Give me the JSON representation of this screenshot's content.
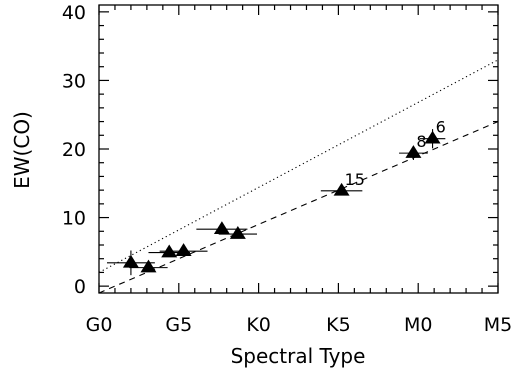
{
  "chart_data": {
    "type": "scatter",
    "title": "",
    "xlabel": "Spectral Type",
    "ylabel": "EW(CO)",
    "xlim": [
      0,
      25
    ],
    "ylim": [
      -1,
      41
    ],
    "x_ticks": [
      {
        "value": 0,
        "label": "G0"
      },
      {
        "value": 5,
        "label": "G5"
      },
      {
        "value": 10,
        "label": "K0"
      },
      {
        "value": 15,
        "label": "K5"
      },
      {
        "value": 20,
        "label": "M0"
      },
      {
        "value": 25,
        "label": "M5"
      }
    ],
    "y_ticks": [
      0,
      10,
      20,
      30,
      40
    ],
    "grid": false,
    "points": [
      {
        "x": 2.0,
        "y": 3.4,
        "xerr": 1.5,
        "yerr": 1.8,
        "label": ""
      },
      {
        "x": 3.1,
        "y": 2.7,
        "xerr": 1.2,
        "yerr": 0.6,
        "label": ""
      },
      {
        "x": 4.4,
        "y": 4.9,
        "xerr": 1.3,
        "yerr": 0.6,
        "label": ""
      },
      {
        "x": 5.3,
        "y": 5.1,
        "xerr": 1.5,
        "yerr": 0.6,
        "label": ""
      },
      {
        "x": 7.7,
        "y": 8.3,
        "xerr": 1.6,
        "yerr": 0.6,
        "label": ""
      },
      {
        "x": 8.7,
        "y": 7.6,
        "xerr": 1.2,
        "yerr": 0.6,
        "label": ""
      },
      {
        "x": 15.2,
        "y": 13.9,
        "xerr": 1.3,
        "yerr": 0.6,
        "label": "15"
      },
      {
        "x": 19.7,
        "y": 19.4,
        "xerr": 0.9,
        "yerr": 1.0,
        "label": "8"
      },
      {
        "x": 20.9,
        "y": 21.5,
        "xerr": 0.8,
        "yerr": 1.4,
        "label": "6"
      }
    ],
    "lines": [
      {
        "style": "dashed",
        "x": [
          0,
          25
        ],
        "y": [
          -1,
          24
        ]
      },
      {
        "style": "dotted",
        "x": [
          0,
          25
        ],
        "y": [
          2,
          33
        ]
      }
    ]
  }
}
